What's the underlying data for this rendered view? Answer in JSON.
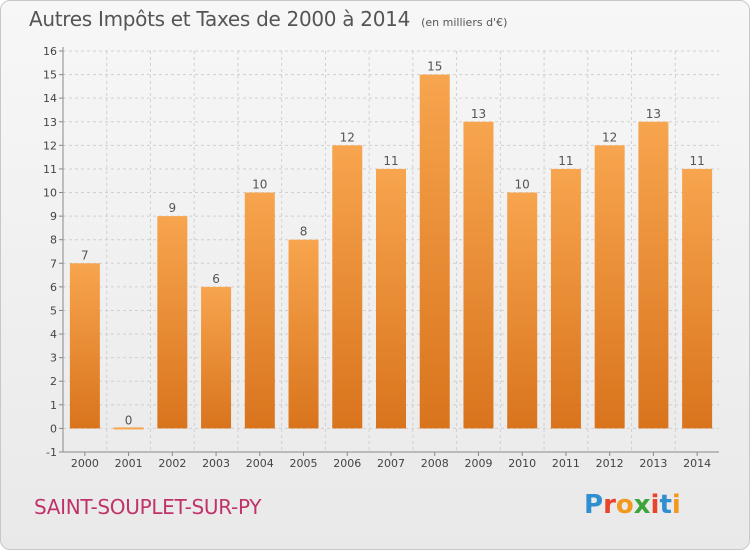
{
  "title": "Autres Impôts et Taxes de 2000 à 2014",
  "unit": "(en milliers d'€)",
  "commune": "SAINT-SOUPLET-SUR-PY",
  "logo": {
    "text": "Proxiti",
    "letters": [
      {
        "ch": "P",
        "color": "#2f8fd0"
      },
      {
        "ch": "r",
        "color": "#e8432c"
      },
      {
        "ch": "o",
        "color": "#f29a1f"
      },
      {
        "ch": "x",
        "color": "#3da63b"
      },
      {
        "ch": "i",
        "color": "#e8432c"
      },
      {
        "ch": "t",
        "color": "#2f8fd0"
      },
      {
        "ch": "i",
        "color": "#f29a1f"
      }
    ]
  },
  "chart_data": {
    "type": "bar",
    "categories": [
      "2000",
      "2001",
      "2002",
      "2003",
      "2004",
      "2005",
      "2006",
      "2007",
      "2008",
      "2009",
      "2010",
      "2011",
      "2012",
      "2013",
      "2014"
    ],
    "values": [
      7,
      0,
      9,
      6,
      10,
      8,
      12,
      11,
      15,
      13,
      10,
      11,
      12,
      13,
      11
    ],
    "ylim": [
      -1,
      16
    ],
    "yticks": [
      -1,
      0,
      1,
      2,
      3,
      4,
      5,
      6,
      7,
      8,
      9,
      10,
      11,
      12,
      13,
      14,
      15,
      16
    ],
    "grid": true,
    "bar_color_top": "#f7a54e",
    "bar_color_bottom": "#d9741d",
    "grid_color": "#d0d0d0"
  }
}
